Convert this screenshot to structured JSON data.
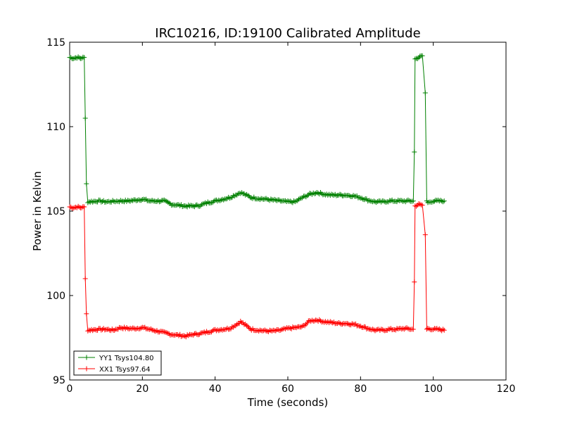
{
  "chart_data": {
    "type": "line",
    "title": "IRC10216, ID:19100 Calibrated Amplitude",
    "xlabel": "Time (seconds)",
    "ylabel": "Power in Kelvin",
    "xlim": [
      0,
      120
    ],
    "ylim": [
      95,
      115
    ],
    "xticks": [
      "0",
      "20",
      "40",
      "60",
      "80",
      "100",
      "120"
    ],
    "yticks": [
      "95",
      "100",
      "105",
      "110",
      "115"
    ],
    "grid": false,
    "legend_position": "lower-left",
    "marker": "+",
    "series": [
      {
        "name": "YY1 Tsys104.80",
        "color": "#008000",
        "x": [
          0,
          1,
          2,
          3,
          4,
          4.3,
          4.6,
          5,
          8,
          10,
          14,
          16,
          18,
          20,
          22,
          24,
          26,
          28,
          30,
          32,
          34,
          36,
          38,
          40,
          42,
          44,
          46,
          47,
          48,
          50,
          52,
          54,
          56,
          58,
          60,
          62,
          64,
          66,
          68,
          70,
          72,
          74,
          76,
          78,
          80,
          82,
          84,
          86,
          88,
          90,
          92,
          94.5,
          94.8,
          95.0,
          96,
          97,
          97.8,
          98.2,
          98.5,
          100,
          101,
          103
        ],
        "y": [
          114.1,
          114.05,
          114.1,
          114.05,
          114.1,
          110.5,
          106.6,
          105.55,
          105.6,
          105.55,
          105.6,
          105.6,
          105.65,
          105.7,
          105.6,
          105.6,
          105.6,
          105.4,
          105.35,
          105.3,
          105.3,
          105.35,
          105.5,
          105.6,
          105.7,
          105.8,
          106.0,
          106.1,
          106.0,
          105.8,
          105.75,
          105.7,
          105.65,
          105.6,
          105.55,
          105.55,
          105.8,
          106.0,
          106.1,
          106.0,
          105.95,
          105.95,
          105.95,
          105.9,
          105.8,
          105.65,
          105.55,
          105.55,
          105.6,
          105.6,
          105.6,
          105.6,
          108.5,
          114.0,
          114.1,
          114.2,
          112.0,
          105.6,
          105.5,
          105.6,
          105.6,
          105.6
        ]
      },
      {
        "name": "XX1 Tsys97.64",
        "color": "#ff0000",
        "x": [
          0,
          1,
          2,
          3,
          4,
          4.3,
          4.6,
          5,
          8,
          10,
          12,
          14,
          16,
          18,
          20,
          22,
          24,
          26,
          28,
          30,
          32,
          34,
          36,
          38,
          40,
          42,
          44,
          46,
          47,
          48,
          50,
          52,
          54,
          56,
          58,
          60,
          62,
          64,
          66,
          68,
          70,
          72,
          74,
          76,
          78,
          80,
          82,
          84,
          86,
          88,
          90,
          92,
          94.5,
          94.8,
          95.0,
          96,
          97,
          97.8,
          98.2,
          98.5,
          100,
          101,
          103
        ],
        "y": [
          105.25,
          105.2,
          105.25,
          105.2,
          105.25,
          101.0,
          98.9,
          97.95,
          98.0,
          98.0,
          97.95,
          98.1,
          98.05,
          98.05,
          98.1,
          98.0,
          97.9,
          97.8,
          97.7,
          97.65,
          97.6,
          97.7,
          97.75,
          97.85,
          97.95,
          98.0,
          98.05,
          98.3,
          98.45,
          98.3,
          98.0,
          97.95,
          97.9,
          97.9,
          97.95,
          98.05,
          98.1,
          98.15,
          98.5,
          98.55,
          98.45,
          98.4,
          98.35,
          98.35,
          98.3,
          98.2,
          98.05,
          97.95,
          97.95,
          98.0,
          98.0,
          98.05,
          98.0,
          100.8,
          105.3,
          105.4,
          105.35,
          103.6,
          98.0,
          98.05,
          98.0,
          98.0,
          97.95
        ]
      }
    ]
  }
}
